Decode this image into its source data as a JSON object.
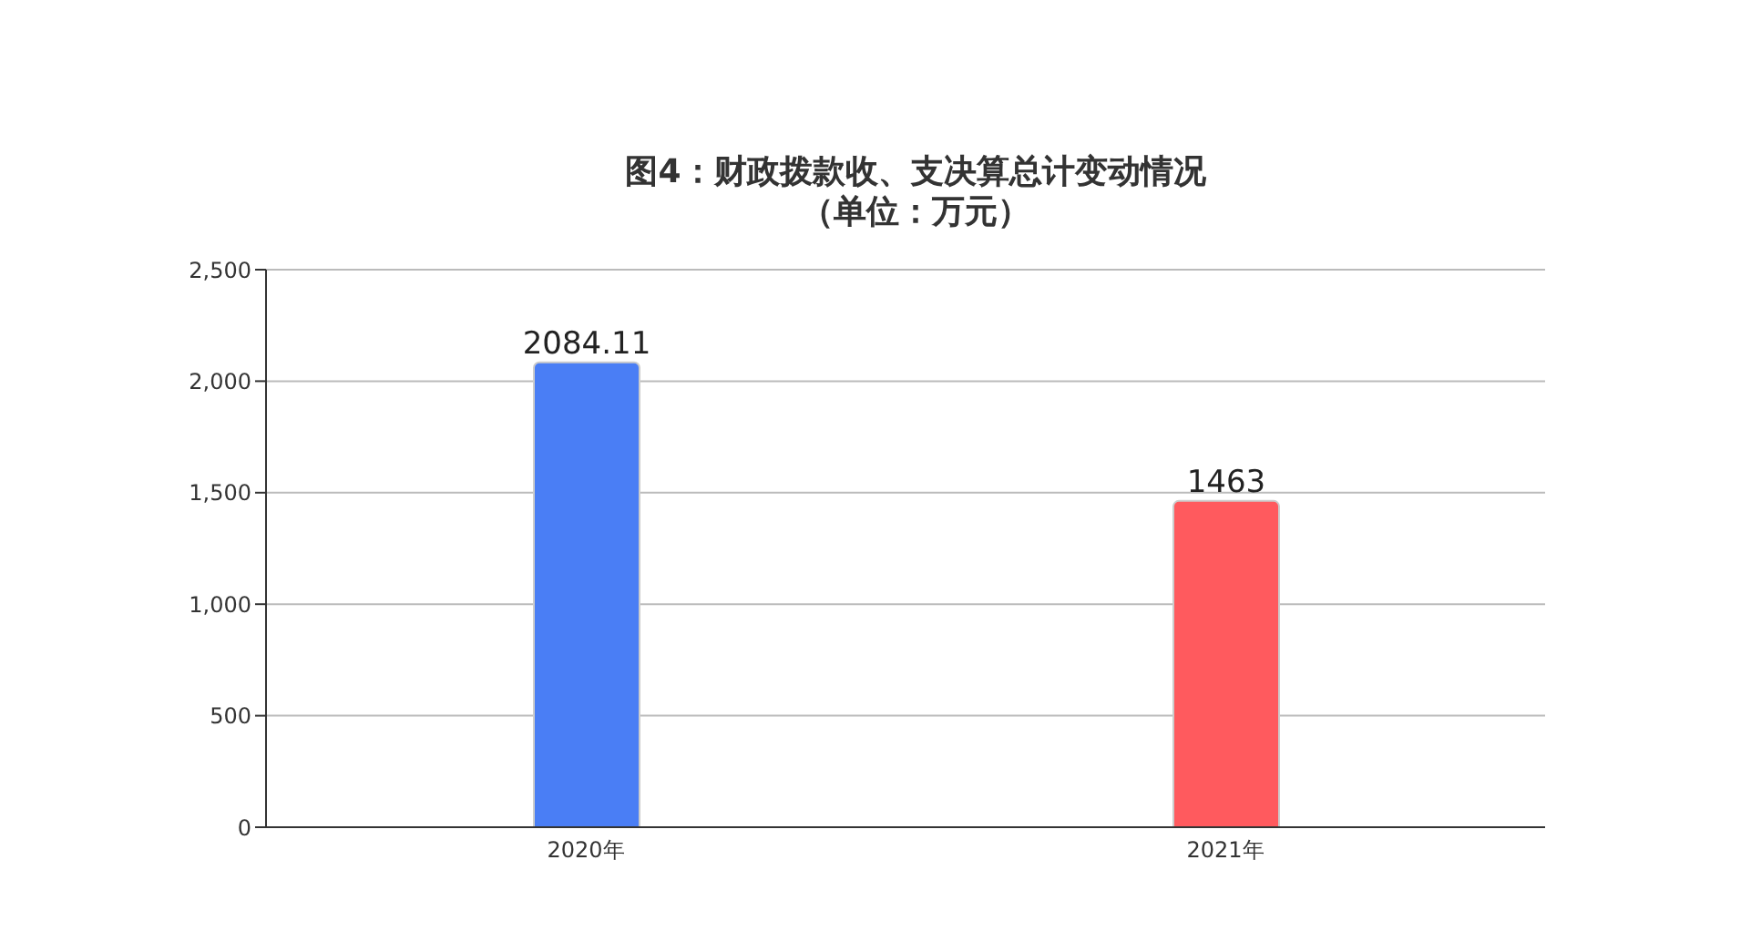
{
  "chart_data": {
    "type": "bar",
    "title": "图4：财政拨款收、支决算总计变动情况",
    "subtitle": "（单位：万元）",
    "categories": [
      "2020年",
      "2021年"
    ],
    "values": [
      2084.11,
      1463
    ],
    "colors": [
      "#4a7ef5",
      "#ff5a5e"
    ],
    "ylim": [
      0,
      2500
    ],
    "yticks": [
      0,
      {
        "value": 500,
        "label": "500"
      },
      {
        "value": 1000,
        "label": "1,000"
      },
      {
        "value": 1500,
        "label": "1,500"
      },
      {
        "value": 2000,
        "label": "2,000"
      },
      {
        "value": 2500,
        "label": "2,500"
      }
    ],
    "grid": "y",
    "data_labels": true
  }
}
